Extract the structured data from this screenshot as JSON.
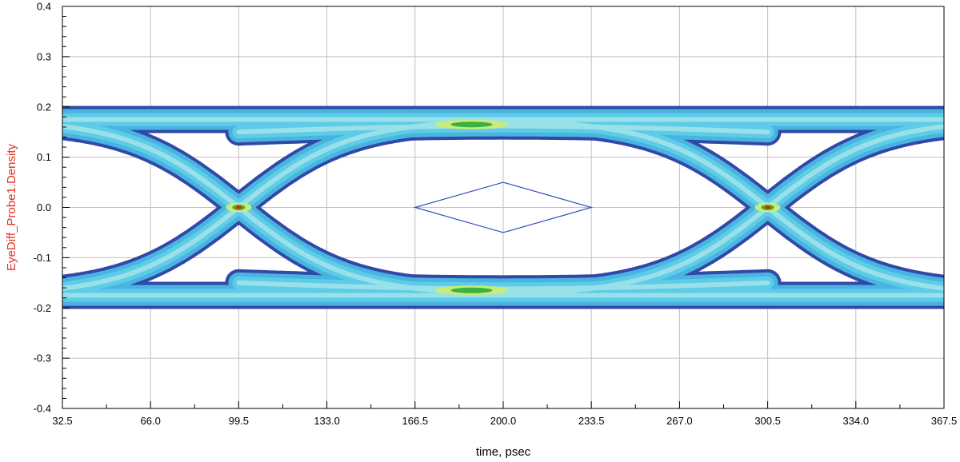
{
  "chart_data": {
    "type": "eye-diagram",
    "xlabel": "time, psec",
    "ylabel": "EyeDiff_Probe1.Density",
    "xlim": [
      32.5,
      367.5
    ],
    "ylim": [
      -0.4,
      0.4
    ],
    "x_ticks": [
      "32.5",
      "66.0",
      "99.5",
      "133.0",
      "166.5",
      "200.0",
      "233.5",
      "267.0",
      "300.5",
      "334.0",
      "367.5"
    ],
    "y_ticks": [
      "-0.4",
      "-0.3",
      "-0.2",
      "-0.1",
      "0.0",
      "0.1",
      "0.2",
      "0.3",
      "0.4"
    ],
    "grid": true,
    "unit_interval_ps": 201,
    "crossings": [
      {
        "x": 99.5,
        "y": 0.0
      },
      {
        "x": 300.5,
        "y": 0.0
      }
    ],
    "levels": {
      "high": 0.175,
      "low": -0.175,
      "eye_inner_high": 0.15,
      "eye_inner_low": -0.15
    },
    "eye_mask": [
      {
        "x": 166.5,
        "y": 0.0
      },
      {
        "x": 200.0,
        "y": 0.05
      },
      {
        "x": 233.5,
        "y": 0.0
      },
      {
        "x": 200.0,
        "y": -0.05
      }
    ],
    "density_colors": [
      "#3048a8",
      "#4ab4e0",
      "#5ccce8",
      "#9ae0e8",
      "#c8ec78",
      "#3cb040",
      "#e02020"
    ],
    "colors": {
      "axis_title": "#e03020",
      "mask": "#3050b0",
      "grid": "#c0c0c0"
    }
  }
}
